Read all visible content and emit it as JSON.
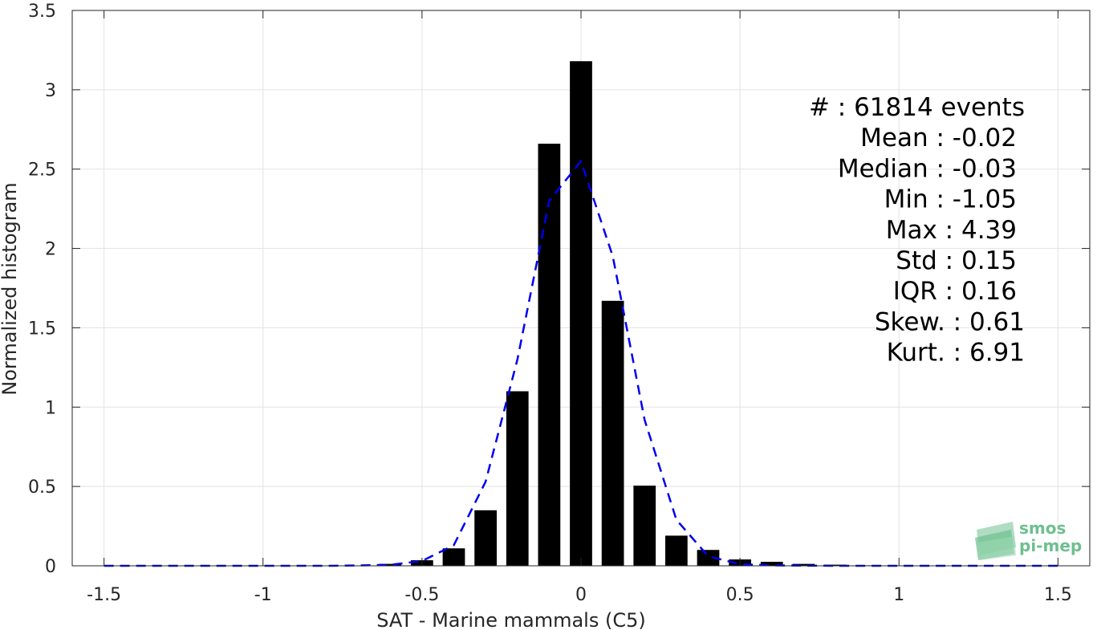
{
  "chart_data": {
    "type": "bar",
    "xlabel": "SAT - Marine mammals (C5)",
    "ylabel": "Normalized histogram",
    "xlim": [
      -1.6,
      1.6
    ],
    "ylim": [
      0,
      3.5
    ],
    "grid": true,
    "xticks": [
      "-1.5",
      "-1",
      "-0.5",
      "0",
      "0.5",
      "1",
      "1.5"
    ],
    "xtick_values": [
      -1.5,
      -1,
      -0.5,
      0,
      0.5,
      1,
      1.5
    ],
    "yticks": [
      "0",
      "0.5",
      "1",
      "1.5",
      "2",
      "2.5",
      "3",
      "3.5"
    ],
    "ytick_values": [
      0,
      0.5,
      1,
      1.5,
      2,
      2.5,
      3,
      3.5
    ],
    "bar_color": "#000000",
    "bar_width": 0.07,
    "bars": {
      "x": [
        -0.6,
        -0.5,
        -0.4,
        -0.3,
        -0.2,
        -0.1,
        0.0,
        0.1,
        0.2,
        0.3,
        0.4,
        0.5,
        0.6,
        0.7,
        0.8,
        0.9
      ],
      "y": [
        0.012,
        0.035,
        0.11,
        0.35,
        1.1,
        2.66,
        3.18,
        1.67,
        0.505,
        0.19,
        0.1,
        0.04,
        0.025,
        0.012,
        0.007,
        0.003
      ]
    },
    "fit_line": {
      "style": "dashed",
      "color": "#0000ee",
      "x": [
        -1.5,
        -1.0,
        -0.8,
        -0.7,
        -0.6,
        -0.5,
        -0.4,
        -0.3,
        -0.2,
        -0.1,
        0.0,
        0.1,
        0.2,
        0.3,
        0.4,
        0.5,
        0.6,
        0.7,
        0.8,
        1.0,
        1.5
      ],
      "y": [
        0,
        0,
        0,
        0.002,
        0.006,
        0.03,
        0.13,
        0.53,
        1.3,
        2.3,
        2.55,
        1.95,
        0.92,
        0.29,
        0.06,
        0.01,
        0.003,
        0.001,
        0,
        0,
        0
      ]
    }
  },
  "stats": [
    {
      "label": "#",
      "value": ": 61814 events"
    },
    {
      "label": "Mean",
      "value": ": -0.02"
    },
    {
      "label": "Median",
      "value": ": -0.03"
    },
    {
      "label": "Min",
      "value": ": -1.05"
    },
    {
      "label": "Max",
      "value": ": 4.39"
    },
    {
      "label": "Std",
      "value": ": 0.15"
    },
    {
      "label": "IQR",
      "value": ": 0.16"
    },
    {
      "label": "Skew.",
      "value": ": 0.61"
    },
    {
      "label": "Kurt.",
      "value": ": 6.91"
    }
  ],
  "logo": {
    "line1": "smos",
    "line2": "pi-mep",
    "color": "#6dbf8f"
  }
}
